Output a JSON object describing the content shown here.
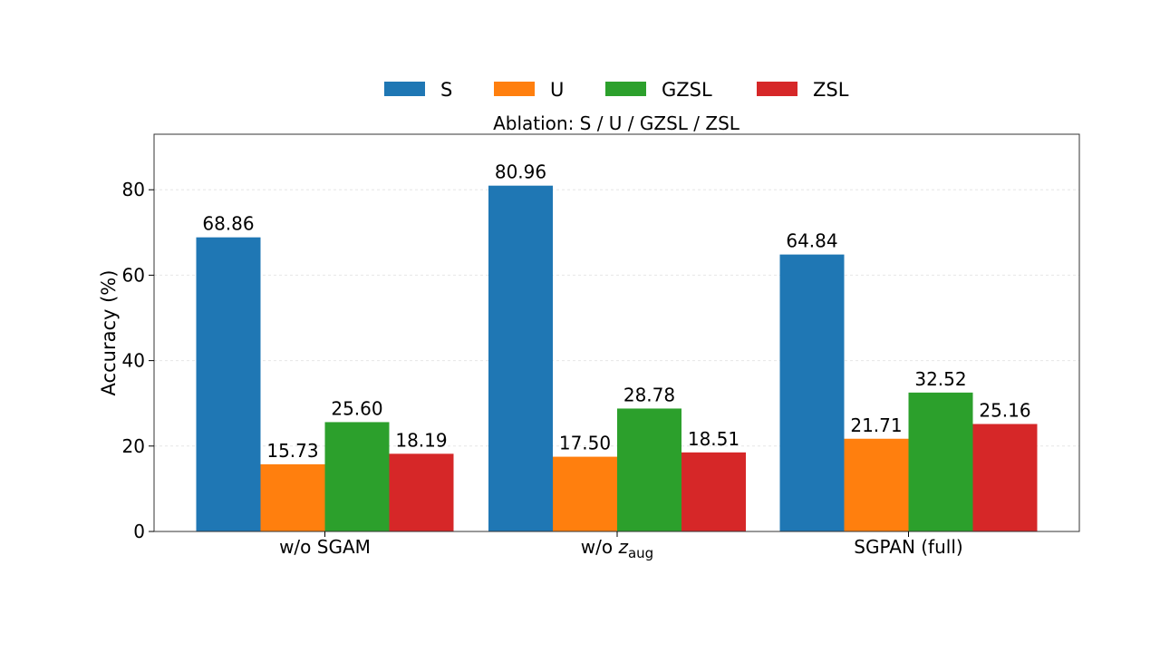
{
  "chart_data": {
    "type": "bar",
    "title": "Ablation: S / U / GZSL / ZSL",
    "xlabel": "",
    "ylabel": "Accuracy (%)",
    "ylim": [
      0,
      93
    ],
    "yticks": [
      0,
      20,
      40,
      60,
      80
    ],
    "grid": true,
    "legend_position": "top-center",
    "categories": [
      "w/o SGAM",
      "w/o z_aug",
      "SGPAN (full)"
    ],
    "category_labels": [
      {
        "main": "w/o SGAM",
        "math": "",
        "sub": ""
      },
      {
        "main": "w/o ",
        "math": "z",
        "sub": "aug"
      },
      {
        "main": "SGPAN (full)",
        "math": "",
        "sub": ""
      }
    ],
    "series": [
      {
        "name": "S",
        "color": "#1f77b4",
        "values": [
          68.86,
          80.96,
          64.84
        ],
        "labels": [
          "68.86",
          "80.96",
          "64.84"
        ]
      },
      {
        "name": "U",
        "color": "#ff7f0e",
        "values": [
          15.73,
          17.5,
          21.71
        ],
        "labels": [
          "15.73",
          "17.50",
          "21.71"
        ]
      },
      {
        "name": "GZSL",
        "color": "#2ca02c",
        "values": [
          25.6,
          28.78,
          32.52
        ],
        "labels": [
          "25.60",
          "28.78",
          "32.52"
        ]
      },
      {
        "name": "ZSL",
        "color": "#d62728",
        "values": [
          18.19,
          18.51,
          25.16
        ],
        "labels": [
          "18.19",
          "18.51",
          "25.16"
        ]
      }
    ]
  }
}
